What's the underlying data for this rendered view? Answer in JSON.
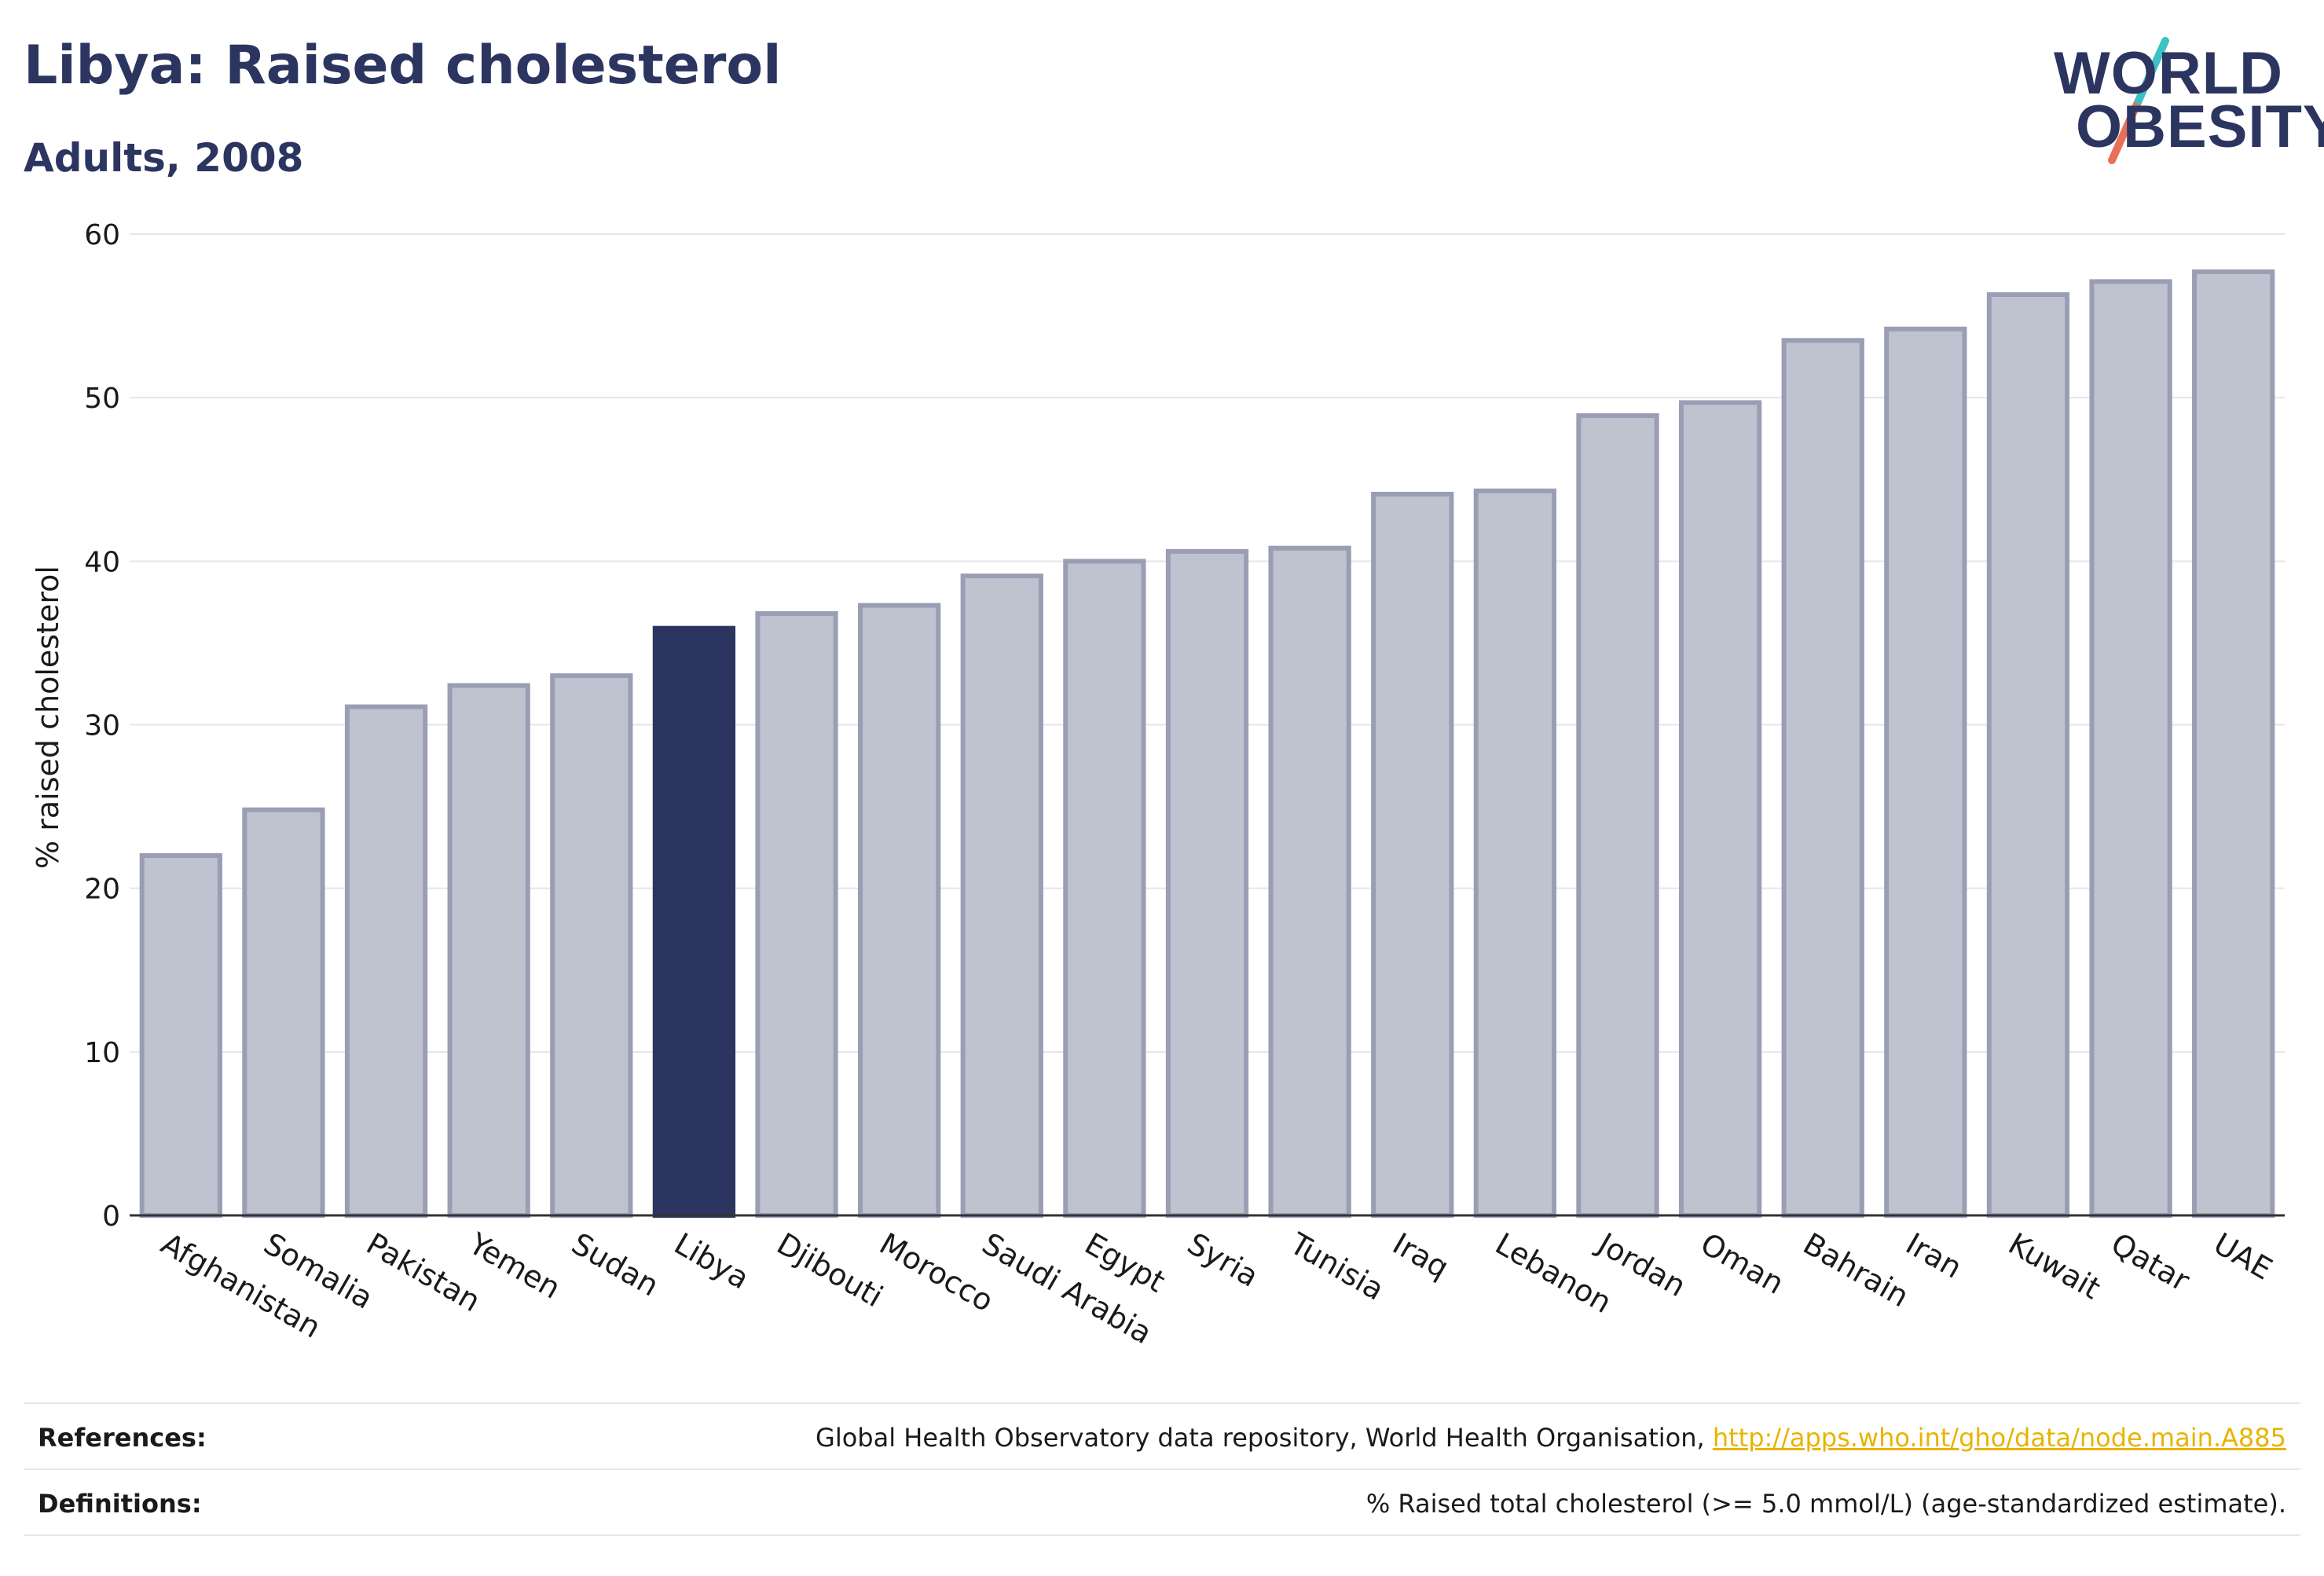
{
  "header": {
    "title": "Libya: Raised cholesterol",
    "subtitle": "Adults, 2008"
  },
  "logo": {
    "line1": "WORLD",
    "line2": "OBESITY",
    "slash_colors": [
      "#3cc1c4",
      "#e8705a"
    ]
  },
  "colors": {
    "highlight_bar": "#2b3560",
    "bar_fill": "#bfc2cf",
    "bar_stroke": "#9a9eb5",
    "text": "#2b3560",
    "link": "#e8b400"
  },
  "chart_data": {
    "type": "bar",
    "ylabel": "% raised cholesterol",
    "xlabel": "",
    "ylim": [
      0,
      60
    ],
    "yticks": [
      0,
      10,
      20,
      30,
      40,
      50,
      60
    ],
    "grid": true,
    "highlight": "Libya",
    "categories": [
      "Afghanistan",
      "Somalia",
      "Pakistan",
      "Yemen",
      "Sudan",
      "Libya",
      "Djibouti",
      "Morocco",
      "Saudi Arabia",
      "Egypt",
      "Syria",
      "Tunisia",
      "Iraq",
      "Lebanon",
      "Jordan",
      "Oman",
      "Bahrain",
      "Iran",
      "Kuwait",
      "Qatar",
      "UAE"
    ],
    "values": [
      22.0,
      24.8,
      31.1,
      32.4,
      33.0,
      35.9,
      36.8,
      37.3,
      39.1,
      40.0,
      40.6,
      40.8,
      44.1,
      44.3,
      48.9,
      49.7,
      53.5,
      54.2,
      56.3,
      57.1,
      57.7
    ]
  },
  "footer": {
    "references_label": "References:",
    "references_text": "Global Health Observatory data repository, World Health Organisation, ",
    "references_link": "http://apps.who.int/gho/data/node.main.A885",
    "definitions_label": "Definitions:",
    "definitions_text": "% Raised total cholesterol (>= 5.0 mmol/L) (age-standardized estimate)."
  }
}
